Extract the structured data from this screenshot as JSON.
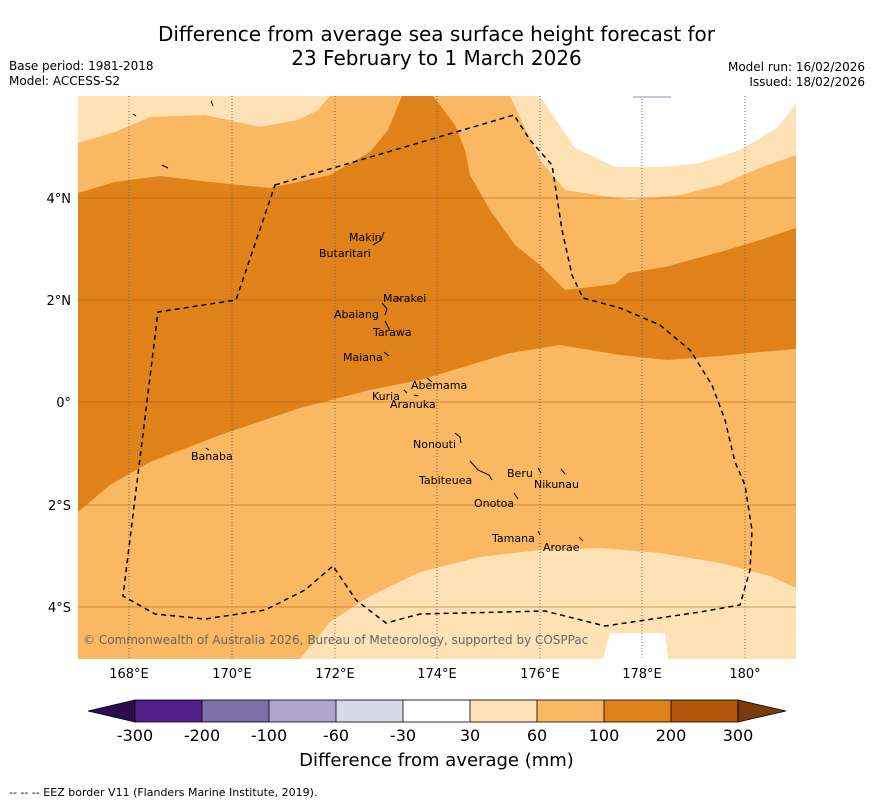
{
  "title": {
    "line1": "Difference from average sea surface height forecast for",
    "line2": "23 February to 1 March 2026"
  },
  "meta": {
    "base_period": "Base period: 1981-2018",
    "model": "Model: ACCESS-S2",
    "model_run": "Model run: 16/02/2026",
    "issued": "Issued: 18/02/2026"
  },
  "map": {
    "lat_ticks": [
      "4°N",
      "2°N",
      "0°",
      "2°S",
      "4°S"
    ],
    "lon_ticks": [
      "168°E",
      "170°E",
      "172°E",
      "174°E",
      "176°E",
      "178°E",
      "180°"
    ],
    "places": [
      "Makin",
      "Butaritari",
      "Marakei",
      "Abaiang",
      "Tarawa",
      "Maiana",
      "Abemama",
      "Kuria",
      "Aranuka",
      "Nonouti",
      "Banaba",
      "Beru",
      "Tabiteuea",
      "Nikunau",
      "Onotoa",
      "Tamana",
      "Arorae"
    ],
    "copyright": "© Commonwealth of Australia 2026, Bureau of Meteorology, supported by COSPPac",
    "colors": {
      "band_30_60": "#fee1b5",
      "band_60_100": "#fbb862",
      "band_100_200": "#e0821a"
    }
  },
  "colorbar": {
    "ticks": [
      "-300",
      "-200",
      "-100",
      "-60",
      "-30",
      "30",
      "60",
      "100",
      "200",
      "300"
    ],
    "colors": [
      "#2d0c4e",
      "#54208a",
      "#7f70ab",
      "#ada4cf",
      "#d9d9eb",
      "#ffffff",
      "#fee1b5",
      "#fbb862",
      "#e0821a",
      "#b25707",
      "#7a3c0a"
    ],
    "title": "Difference from average (mm)"
  },
  "eez_note": "--  --  -- EEZ border V11 (Flanders Marine Institute, 2019)."
}
